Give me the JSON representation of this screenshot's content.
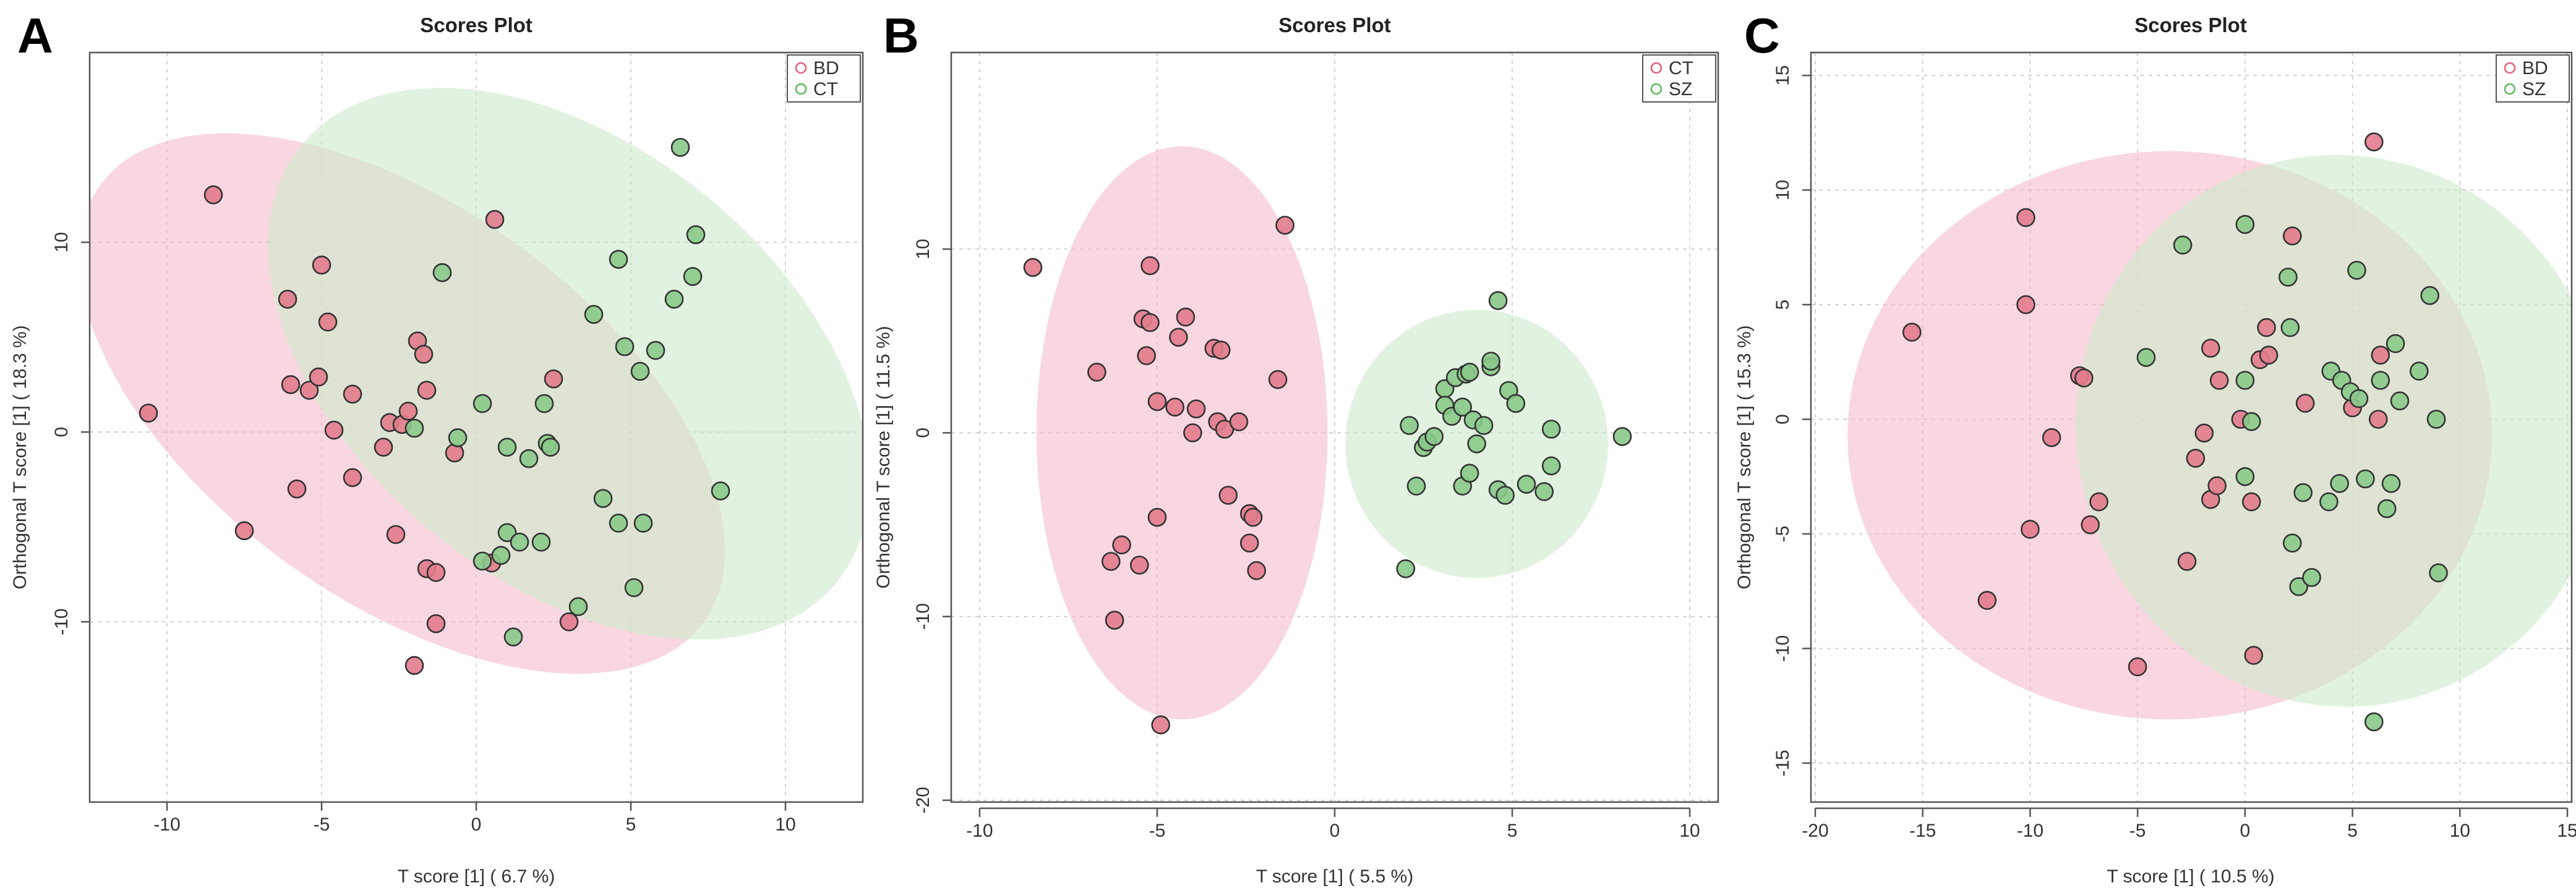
{
  "chart_data": [
    {
      "type": "scatter",
      "panel": "A",
      "title": "Scores Plot",
      "xlabel": "T score [1] ( 6.7 %)",
      "ylabel": "Orthogonal T score [1] ( 18.3 %)",
      "xlim": [
        -12.5,
        12.5
      ],
      "ylim": [
        -19.5,
        20
      ],
      "xticks": [
        -10,
        -5,
        0,
        5,
        10
      ],
      "yticks": [
        -10,
        0,
        10
      ],
      "grid": true,
      "legend_position": "top-right",
      "series": [
        {
          "name": "BD",
          "color": "#e0607a",
          "fill": "#e27b8d",
          "ellipse": {
            "cx": -2.4,
            "cy": 1.5,
            "rx": 7.9,
            "ry": 15.8,
            "angle": 30,
            "color": "#f5bccb"
          },
          "points": [
            [
              -10.6,
              1.0
            ],
            [
              -8.5,
              12.5
            ],
            [
              -7.5,
              -5.2
            ],
            [
              -6.1,
              7.0
            ],
            [
              -6.0,
              2.5
            ],
            [
              -5.8,
              -3.0
            ],
            [
              -5.4,
              2.2
            ],
            [
              -5.1,
              2.9
            ],
            [
              -5.0,
              8.8
            ],
            [
              -4.8,
              5.8
            ],
            [
              -4.6,
              0.1
            ],
            [
              -4.0,
              2.0
            ],
            [
              -4.0,
              -2.4
            ],
            [
              -3.0,
              -0.8
            ],
            [
              -2.8,
              0.5
            ],
            [
              -2.6,
              -5.4
            ],
            [
              -2.4,
              0.4
            ],
            [
              -2.2,
              1.1
            ],
            [
              -2.0,
              -12.3
            ],
            [
              -1.9,
              4.8
            ],
            [
              -1.7,
              4.1
            ],
            [
              -1.6,
              -7.2
            ],
            [
              -1.6,
              2.2
            ],
            [
              -1.3,
              -10.1
            ],
            [
              -1.3,
              -7.4
            ],
            [
              -0.7,
              -1.1
            ],
            [
              0.5,
              -6.9
            ],
            [
              0.6,
              11.2
            ],
            [
              2.5,
              2.8
            ],
            [
              3.0,
              -10.0
            ]
          ]
        },
        {
          "name": "CT",
          "color": "#5cb85c",
          "fill": "#8ac98a",
          "ellipse": {
            "cx": 3.0,
            "cy": 3.6,
            "rx": 8.3,
            "ry": 15.4,
            "angle": 23,
            "color": "#cdebcb"
          },
          "points": [
            [
              -2.0,
              0.2
            ],
            [
              -1.1,
              8.4
            ],
            [
              -0.6,
              -0.3
            ],
            [
              0.2,
              1.5
            ],
            [
              0.2,
              -6.8
            ],
            [
              0.8,
              -6.5
            ],
            [
              1.0,
              -5.3
            ],
            [
              1.0,
              -0.8
            ],
            [
              1.2,
              -10.8
            ],
            [
              1.4,
              -5.8
            ],
            [
              1.7,
              -1.4
            ],
            [
              2.1,
              -5.8
            ],
            [
              2.2,
              1.5
            ],
            [
              2.3,
              -0.6
            ],
            [
              2.4,
              -0.8
            ],
            [
              3.3,
              -9.2
            ],
            [
              3.8,
              6.2
            ],
            [
              4.1,
              -3.5
            ],
            [
              4.6,
              9.1
            ],
            [
              4.6,
              -4.8
            ],
            [
              4.8,
              4.5
            ],
            [
              5.1,
              -8.2
            ],
            [
              5.3,
              3.2
            ],
            [
              5.4,
              -4.8
            ],
            [
              5.8,
              4.3
            ],
            [
              6.4,
              7.0
            ],
            [
              6.6,
              15.0
            ],
            [
              7.0,
              8.2
            ],
            [
              7.1,
              10.4
            ],
            [
              7.9,
              -3.1
            ]
          ]
        }
      ]
    },
    {
      "type": "scatter",
      "panel": "B",
      "title": "Scores Plot",
      "xlabel": "T score [1] ( 5.5 %)",
      "ylabel": "Orthogonal T score [1] ( 11.5 %)",
      "xlim": [
        -10.8,
        10.8
      ],
      "ylim": [
        -20.1,
        20.7
      ],
      "xticks": [
        -10,
        -5,
        0,
        5,
        10
      ],
      "yticks": [
        -20,
        -10,
        0,
        10
      ],
      "grid": true,
      "legend_position": "top-right",
      "series": [
        {
          "name": "CT",
          "color": "#e0607a",
          "fill": "#e27b8d",
          "ellipse": {
            "cx": -4.3,
            "cy": 0.0,
            "rx": 4.1,
            "ry": 15.6,
            "angle": 0,
            "color": "#f5bccb"
          },
          "points": [
            [
              -8.5,
              9.0
            ],
            [
              -6.7,
              3.3
            ],
            [
              -6.3,
              -7.0
            ],
            [
              -6.2,
              -10.2
            ],
            [
              -6.0,
              -6.1
            ],
            [
              -5.5,
              -7.2
            ],
            [
              -5.4,
              6.2
            ],
            [
              -5.3,
              4.2
            ],
            [
              -5.2,
              6.0
            ],
            [
              -5.2,
              9.1
            ],
            [
              -5.0,
              1.7
            ],
            [
              -5.0,
              -4.6
            ],
            [
              -4.9,
              -15.9
            ],
            [
              -4.5,
              1.4
            ],
            [
              -4.4,
              5.2
            ],
            [
              -4.2,
              6.3
            ],
            [
              -4.0,
              0.0
            ],
            [
              -3.9,
              1.3
            ],
            [
              -3.4,
              4.6
            ],
            [
              -3.3,
              0.6
            ],
            [
              -3.2,
              4.5
            ],
            [
              -3.1,
              0.2
            ],
            [
              -3.0,
              -3.4
            ],
            [
              -2.7,
              0.6
            ],
            [
              -2.4,
              -4.4
            ],
            [
              -2.4,
              -6.0
            ],
            [
              -2.3,
              -4.6
            ],
            [
              -2.2,
              -7.5
            ],
            [
              -1.6,
              2.9
            ],
            [
              -1.4,
              11.3
            ]
          ]
        },
        {
          "name": "SZ",
          "color": "#5cb85c",
          "fill": "#8ac98a",
          "ellipse": {
            "cx": 4.0,
            "cy": -0.6,
            "rx": 3.7,
            "ry": 7.3,
            "angle": 0,
            "color": "#cdebcb"
          },
          "points": [
            [
              2.0,
              -7.4
            ],
            [
              2.1,
              0.4
            ],
            [
              2.3,
              -2.9
            ],
            [
              2.5,
              -0.8
            ],
            [
              2.6,
              -0.5
            ],
            [
              2.8,
              -0.2
            ],
            [
              3.1,
              2.4
            ],
            [
              3.1,
              1.5
            ],
            [
              3.3,
              0.9
            ],
            [
              3.4,
              3.0
            ],
            [
              3.6,
              1.4
            ],
            [
              3.6,
              -2.9
            ],
            [
              3.7,
              3.2
            ],
            [
              3.8,
              3.3
            ],
            [
              3.8,
              -2.2
            ],
            [
              3.9,
              0.7
            ],
            [
              4.0,
              -0.6
            ],
            [
              4.2,
              0.4
            ],
            [
              4.4,
              3.6
            ],
            [
              4.4,
              3.9
            ],
            [
              4.6,
              7.2
            ],
            [
              4.6,
              -3.1
            ],
            [
              4.8,
              -3.4
            ],
            [
              4.9,
              2.3
            ],
            [
              5.1,
              1.6
            ],
            [
              5.4,
              -2.8
            ],
            [
              5.9,
              -3.2
            ],
            [
              6.1,
              -1.8
            ],
            [
              6.1,
              0.2
            ],
            [
              8.1,
              -0.2
            ]
          ]
        }
      ]
    },
    {
      "type": "scatter",
      "panel": "C",
      "title": "Scores Plot",
      "xlabel": "T score [1] ( 10.5 %)",
      "ylabel": "Orthogonal T score [1] ( 15.3 %)",
      "xlim": [
        -20.2,
        15.2
      ],
      "ylim": [
        -16.7,
        16.0
      ],
      "xticks": [
        -20,
        -15,
        -10,
        -5,
        0,
        5,
        10,
        15
      ],
      "yticks": [
        -15,
        -10,
        -5,
        0,
        5,
        10,
        15
      ],
      "grid": true,
      "legend_position": "top-right",
      "series": [
        {
          "name": "BD",
          "color": "#e0607a",
          "fill": "#e27b8d",
          "ellipse": {
            "cx": -3.5,
            "cy": -0.7,
            "rx": 15.0,
            "ry": 12.4,
            "angle": 0,
            "color": "#f5bccb"
          },
          "points": [
            [
              -15.5,
              3.8
            ],
            [
              -12.0,
              -7.9
            ],
            [
              -10.2,
              8.8
            ],
            [
              -10.2,
              5.0
            ],
            [
              -10.0,
              -4.8
            ],
            [
              -9.0,
              -0.8
            ],
            [
              -7.7,
              1.9
            ],
            [
              -7.5,
              1.8
            ],
            [
              -7.2,
              -4.6
            ],
            [
              -6.8,
              -3.6
            ],
            [
              -5.0,
              -10.8
            ],
            [
              -2.7,
              -6.2
            ],
            [
              -2.3,
              -1.7
            ],
            [
              -1.9,
              -0.6
            ],
            [
              -1.6,
              -3.5
            ],
            [
              -1.6,
              3.1
            ],
            [
              -1.3,
              -2.9
            ],
            [
              -1.2,
              1.7
            ],
            [
              -0.2,
              0.0
            ],
            [
              0.3,
              -3.6
            ],
            [
              0.4,
              -10.3
            ],
            [
              0.7,
              2.6
            ],
            [
              1.0,
              4.0
            ],
            [
              1.1,
              2.8
            ],
            [
              2.2,
              8.0
            ],
            [
              2.8,
              0.7
            ],
            [
              5.0,
              0.5
            ],
            [
              6.2,
              0.0
            ],
            [
              6.3,
              2.8
            ],
            [
              6.0,
              12.1
            ]
          ]
        },
        {
          "name": "SZ",
          "color": "#5cb85c",
          "fill": "#8ac98a",
          "ellipse": {
            "cx": 4.5,
            "cy": -0.5,
            "rx": 12.4,
            "ry": 12.0,
            "angle": -18,
            "color": "#cdebcb"
          },
          "points": [
            [
              -4.6,
              2.7
            ],
            [
              -2.9,
              7.6
            ],
            [
              0.0,
              -2.5
            ],
            [
              0.0,
              8.5
            ],
            [
              0.0,
              1.7
            ],
            [
              0.3,
              -0.1
            ],
            [
              2.0,
              6.2
            ],
            [
              2.1,
              4.0
            ],
            [
              2.2,
              -5.4
            ],
            [
              2.5,
              -7.3
            ],
            [
              2.7,
              -3.2
            ],
            [
              3.1,
              -6.9
            ],
            [
              3.9,
              -3.6
            ],
            [
              4.0,
              2.1
            ],
            [
              4.4,
              -2.8
            ],
            [
              4.5,
              1.7
            ],
            [
              4.9,
              1.2
            ],
            [
              5.2,
              6.5
            ],
            [
              5.3,
              0.9
            ],
            [
              5.6,
              -2.6
            ],
            [
              6.3,
              1.7
            ],
            [
              6.6,
              -3.9
            ],
            [
              6.8,
              -2.8
            ],
            [
              7.0,
              3.3
            ],
            [
              7.2,
              0.8
            ],
            [
              8.1,
              2.1
            ],
            [
              8.6,
              5.4
            ],
            [
              8.9,
              0.0
            ],
            [
              9.0,
              -6.7
            ],
            [
              6.0,
              -13.2
            ]
          ]
        }
      ]
    }
  ]
}
